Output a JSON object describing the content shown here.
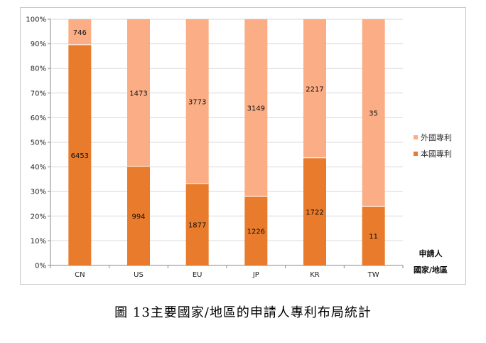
{
  "chart_data": {
    "type": "bar",
    "stacked": "percent",
    "categories": [
      "CN",
      "US",
      "EU",
      "JP",
      "KR",
      "TW"
    ],
    "series": [
      {
        "name": "本國專利",
        "values": [
          6453,
          994,
          1877,
          1226,
          1722,
          11
        ],
        "color": "#e87b2c"
      },
      {
        "name": "外國專利",
        "values": [
          746,
          1473,
          3773,
          3149,
          2217,
          35
        ],
        "color": "#fbae85"
      }
    ],
    "y_ticks": [
      "0%",
      "10%",
      "20%",
      "30%",
      "40%",
      "50%",
      "60%",
      "70%",
      "80%",
      "90%",
      "100%"
    ],
    "ylim": [
      0,
      100
    ],
    "xlabel_line1": "申請人",
    "xlabel_line2": "國家/地區",
    "legend_position": "right",
    "grid": true
  },
  "caption": "圖 13主要國家/地區的申請人專利布局統計"
}
